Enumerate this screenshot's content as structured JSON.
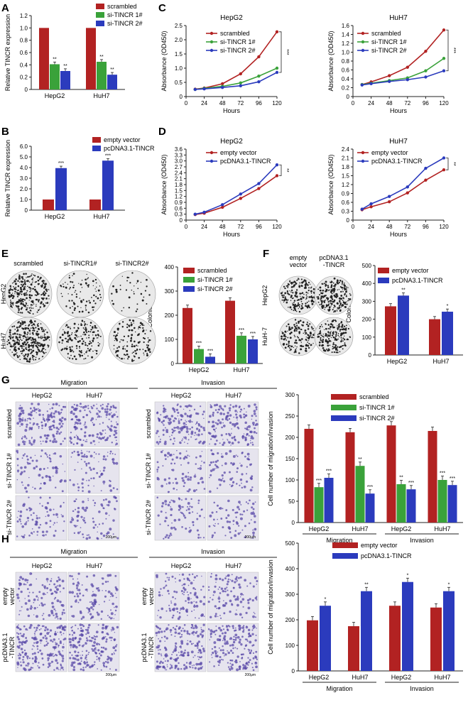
{
  "colors": {
    "red": "#b22222",
    "green": "#3aa23a",
    "blue": "#2b3bbd",
    "axis": "#222222",
    "stain": "#5a4aa8"
  },
  "panels": {
    "A": {
      "letter": "A",
      "ylabel": "Relative TINCR expression",
      "legend": [
        "scrambled",
        "si-TINCR 1#",
        "si-TINCR 2#"
      ]
    },
    "B": {
      "letter": "B",
      "ylabel": "Relative TINCR expression",
      "legend": [
        "empty vector",
        "pcDNA3.1-TINCR"
      ]
    },
    "C": {
      "letter": "C",
      "titles": [
        "HepG2",
        "HuH7"
      ],
      "ylabel": "Absorbance (OD450)",
      "xlabel": "Hours",
      "legend": [
        "scrambled",
        "si-TINCR 1#",
        "si-TINCR 2#"
      ]
    },
    "D": {
      "letter": "D",
      "titles": [
        "HepG2",
        "HuH7"
      ],
      "ylabel": "Absorbance (OD450)",
      "xlabel": "Hours",
      "legend": [
        "empty vector",
        "pcDNA3.1-TINCR"
      ]
    },
    "E": {
      "letter": "E",
      "col_labels": [
        "scrambled",
        "si-TINCR1#",
        "si-TINCR2#"
      ],
      "row_labels": [
        "HepG2",
        "HuH7"
      ],
      "ylabel": "Colonies",
      "legend": [
        "scrambled",
        "si-TINCR 1#",
        "si-TINCR 2#"
      ]
    },
    "F": {
      "letter": "F",
      "col_labels": [
        "empty\nvector",
        "pcDNA3.1\n-TINCR"
      ],
      "row_labels": [
        "HepG2",
        "HuH-7"
      ],
      "ylabel": "Colonies",
      "legend": [
        "empty vector",
        "pcDNA3.1-TINCR"
      ]
    },
    "G": {
      "letter": "G",
      "groups": [
        "Migration",
        "Invasion"
      ],
      "cells": [
        "HepG2",
        "HuH7"
      ],
      "row_labels": [
        "scrambled",
        "si-TINCR 1#",
        "si-TINCR 2#"
      ],
      "scale": "200μm",
      "ylabel": "Cell number of migration/invasion",
      "legend": [
        "scrambled",
        "si-TINCR 1#",
        "si-TINCR 2#"
      ]
    },
    "H": {
      "letter": "H",
      "groups": [
        "Migration",
        "Invasion"
      ],
      "cells": [
        "HepG2",
        "HuH7"
      ],
      "row_labels": [
        "empty\nvector",
        "pcDNA3.1\n-TINCR"
      ],
      "scale": "200μm",
      "ylabel": "Cell number of migration/invasion",
      "legend": [
        "empty vector",
        "pcDNA3.1-TINCR"
      ]
    }
  },
  "chart_data": [
    {
      "id": "A",
      "type": "bar",
      "categories": [
        "HepG2",
        "HuH7"
      ],
      "ylabel": "Relative TINCR expression",
      "ylim": [
        0,
        1.2
      ],
      "yticks": [
        "0",
        "0.2",
        "0.4",
        "0.6",
        "0.8",
        "1.0",
        "1.2"
      ],
      "series": [
        {
          "name": "scrambled",
          "values": [
            1.0,
            1.0
          ],
          "sig": [
            "",
            ""
          ]
        },
        {
          "name": "si-TINCR 1#",
          "values": [
            0.41,
            0.45
          ],
          "sig": [
            "**",
            "**"
          ]
        },
        {
          "name": "si-TINCR 2#",
          "values": [
            0.3,
            0.24
          ],
          "sig": [
            "**",
            "**"
          ]
        }
      ]
    },
    {
      "id": "B",
      "type": "bar",
      "categories": [
        "HepG2",
        "HuH7"
      ],
      "ylabel": "Relative TINCR expression",
      "ylim": [
        0,
        6.0
      ],
      "yticks": [
        "0",
        "1.0",
        "2.0",
        "3.0",
        "4.0",
        "5.0",
        "6.0"
      ],
      "series": [
        {
          "name": "empty vector",
          "values": [
            1.0,
            1.0
          ],
          "sig": [
            "",
            ""
          ]
        },
        {
          "name": "pcDNA3.1-TINCR",
          "values": [
            3.95,
            4.65
          ],
          "sig": [
            "***",
            "***"
          ]
        }
      ]
    },
    {
      "id": "C1",
      "type": "line",
      "title": "HepG2",
      "x": [
        12,
        24,
        48,
        72,
        96,
        120
      ],
      "ylim": [
        0,
        2.5
      ],
      "yticks": [
        "0",
        "0.5",
        "1.0",
        "1.5",
        "2.0",
        "2.5"
      ],
      "sig": "***",
      "series": [
        {
          "name": "scrambled",
          "values": [
            0.26,
            0.3,
            0.45,
            0.8,
            1.4,
            2.28
          ]
        },
        {
          "name": "si-TINCR 1#",
          "values": [
            0.25,
            0.29,
            0.36,
            0.48,
            0.72,
            1.0
          ]
        },
        {
          "name": "si-TINCR 2#",
          "values": [
            0.25,
            0.27,
            0.32,
            0.38,
            0.52,
            0.85
          ]
        }
      ]
    },
    {
      "id": "C2",
      "type": "line",
      "title": "HuH7",
      "x": [
        12,
        24,
        48,
        72,
        96,
        120
      ],
      "ylim": [
        0,
        1.6
      ],
      "yticks": [
        "0",
        "0.2",
        "0.4",
        "0.6",
        "0.8",
        "1.0",
        "1.2",
        "1.4",
        "1.6"
      ],
      "sig": "***",
      "series": [
        {
          "name": "scrambled",
          "values": [
            0.27,
            0.33,
            0.47,
            0.66,
            1.02,
            1.5
          ]
        },
        {
          "name": "si-TINCR 1#",
          "values": [
            0.27,
            0.3,
            0.36,
            0.42,
            0.58,
            0.86
          ]
        },
        {
          "name": "si-TINCR 2#",
          "values": [
            0.26,
            0.29,
            0.34,
            0.38,
            0.44,
            0.58
          ]
        }
      ]
    },
    {
      "id": "D1",
      "type": "line",
      "title": "HepG2",
      "x": [
        12,
        24,
        48,
        72,
        96,
        120
      ],
      "ylim": [
        0,
        3.6
      ],
      "yticks": [
        "0",
        "0.3",
        "0.6",
        "0.9",
        "1.2",
        "1.5",
        "1.8",
        "2.1",
        "2.4",
        "2.7",
        "3.0",
        "3.3",
        "3.6"
      ],
      "sig": "**",
      "series": [
        {
          "name": "empty vector",
          "values": [
            0.28,
            0.35,
            0.65,
            1.1,
            1.6,
            2.25
          ]
        },
        {
          "name": "pcDNA3.1-TINCR",
          "values": [
            0.3,
            0.4,
            0.78,
            1.32,
            1.85,
            2.8
          ]
        }
      ]
    },
    {
      "id": "D2",
      "type": "line",
      "title": "HuH7",
      "x": [
        12,
        24,
        48,
        72,
        96,
        120
      ],
      "ylim": [
        0,
        2.4
      ],
      "yticks": [
        "0",
        "0.3",
        "0.6",
        "0.9",
        "1.2",
        "1.5",
        "1.8",
        "2.1",
        "2.4"
      ],
      "sig": "**",
      "series": [
        {
          "name": "empty vector",
          "values": [
            0.35,
            0.45,
            0.62,
            0.92,
            1.35,
            1.7
          ]
        },
        {
          "name": "pcDNA3.1-TINCR",
          "values": [
            0.37,
            0.55,
            0.8,
            1.12,
            1.75,
            2.1
          ]
        }
      ]
    },
    {
      "id": "E",
      "type": "bar",
      "categories": [
        "HepG2",
        "HuH7"
      ],
      "ylabel": "Colonies",
      "ylim": [
        0,
        400
      ],
      "yticks": [
        "0",
        "100",
        "200",
        "300",
        "400"
      ],
      "series": [
        {
          "name": "scrambled",
          "values": [
            230,
            260
          ],
          "sig": [
            "",
            ""
          ]
        },
        {
          "name": "si-TINCR 1#",
          "values": [
            60,
            115
          ],
          "sig": [
            "***",
            "***"
          ]
        },
        {
          "name": "si-TINCR 2#",
          "values": [
            28,
            100
          ],
          "sig": [
            "***",
            "***"
          ]
        }
      ]
    },
    {
      "id": "F",
      "type": "bar",
      "categories": [
        "HepG2",
        "HuH7"
      ],
      "ylabel": "Colonies",
      "ylim": [
        0,
        500
      ],
      "yticks": [
        "0",
        "100",
        "200",
        "300",
        "400",
        "500"
      ],
      "series": [
        {
          "name": "empty vector",
          "values": [
            272,
            200
          ],
          "sig": [
            "",
            ""
          ]
        },
        {
          "name": "pcDNA3.1-TINCR",
          "values": [
            332,
            242
          ],
          "sig": [
            "**",
            "*"
          ]
        }
      ]
    },
    {
      "id": "G",
      "type": "bar",
      "categories": [
        "HepG2",
        "HuH7",
        "HepG2",
        "HuH7"
      ],
      "groups": [
        "Migration",
        "Invasion"
      ],
      "ylabel": "Cell number of migration/invasion",
      "ylim": [
        0,
        300
      ],
      "yticks": [
        "0",
        "50",
        "100",
        "150",
        "200",
        "250",
        "300"
      ],
      "series": [
        {
          "name": "scrambled",
          "values": [
            220,
            212,
            228,
            215
          ],
          "sig": [
            "",
            "",
            "",
            ""
          ]
        },
        {
          "name": "si-TINCR 1#",
          "values": [
            83,
            133,
            90,
            100
          ],
          "sig": [
            "***",
            "**",
            "**",
            "***"
          ]
        },
        {
          "name": "si-TINCR 2#",
          "values": [
            105,
            68,
            78,
            88
          ],
          "sig": [
            "***",
            "***",
            "***",
            "***"
          ]
        }
      ]
    },
    {
      "id": "H",
      "type": "bar",
      "categories": [
        "HepG2",
        "HuH7",
        "HepG2",
        "HuH7"
      ],
      "groups": [
        "Migration",
        "Invasion"
      ],
      "ylabel": "Cell number of migration/invasion",
      "ylim": [
        0,
        500
      ],
      "yticks": [
        "0",
        "100",
        "200",
        "300",
        "400",
        "500"
      ],
      "series": [
        {
          "name": "empty vector",
          "values": [
            198,
            175,
            255,
            248
          ],
          "sig": [
            "",
            "",
            "",
            ""
          ]
        },
        {
          "name": "pcDNA3.1-TINCR",
          "values": [
            255,
            312,
            348,
            312
          ],
          "sig": [
            "*",
            "**",
            "*",
            "*"
          ]
        }
      ]
    }
  ]
}
